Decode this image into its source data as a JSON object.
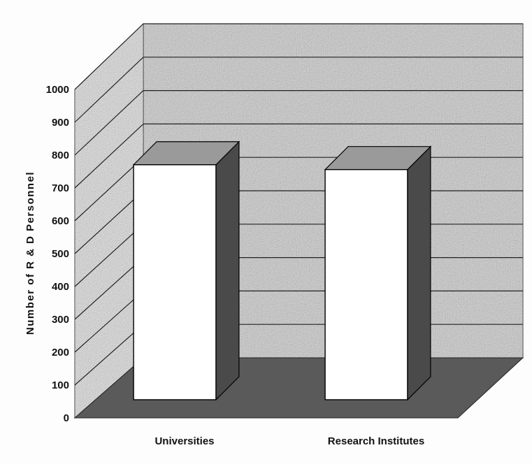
{
  "chart_data": {
    "type": "bar",
    "style": "3d-column",
    "categories": [
      "Universities",
      "Research Institutes"
    ],
    "values": [
      730,
      715
    ],
    "title": "",
    "xlabel": "",
    "ylabel": "Number of R & D Personnel",
    "ylim": [
      0,
      1000
    ],
    "yticks": [
      0,
      100,
      200,
      300,
      400,
      500,
      600,
      700,
      800,
      900,
      1000
    ],
    "grid": true,
    "legend": "none",
    "colors": {
      "bar_front": "#ffffff",
      "bar_side": "#4a4a4a",
      "bar_top": "#9a9a9a",
      "floor": "#5a5a5a",
      "wall": "#c4c4c4",
      "gridline": "#222222"
    }
  }
}
